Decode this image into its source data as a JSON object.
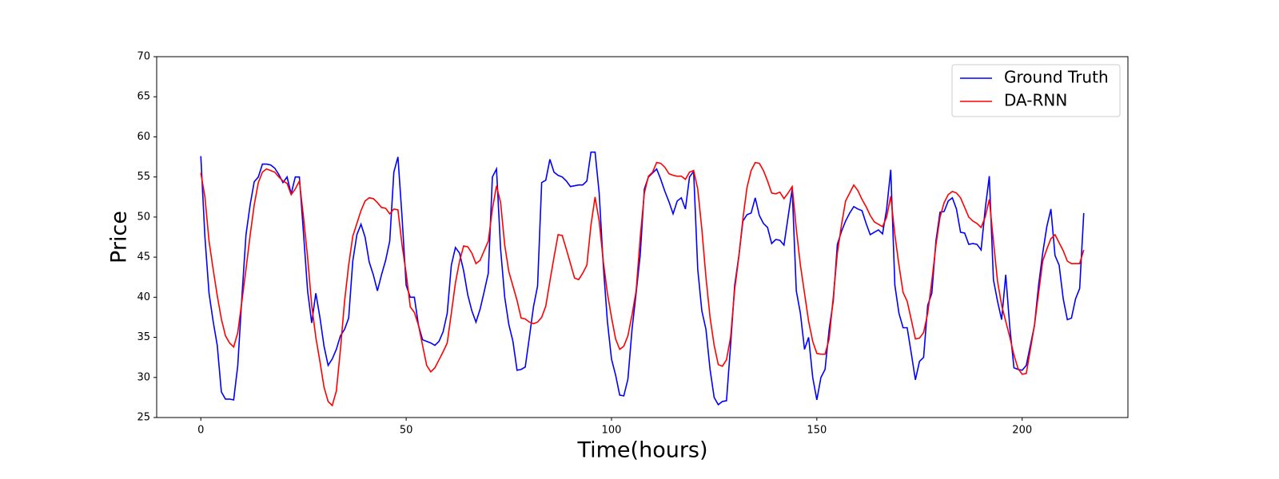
{
  "chart_data": {
    "type": "line",
    "xlabel": "Time(hours)",
    "ylabel": "Price",
    "x": [
      0,
      1,
      2,
      3,
      4,
      5,
      6,
      7,
      8,
      9,
      10,
      11,
      12,
      13,
      14,
      15,
      16,
      17,
      18,
      19,
      20,
      21,
      22,
      23,
      24,
      25,
      26,
      27,
      28,
      29,
      30,
      31,
      32,
      33,
      34,
      35,
      36,
      37,
      38,
      39,
      40,
      41,
      42,
      43,
      44,
      45,
      46,
      47,
      48,
      49,
      50,
      51,
      52,
      53,
      54,
      55,
      56,
      57,
      58,
      59,
      60,
      61,
      62,
      63,
      64,
      65,
      66,
      67,
      68,
      69,
      70,
      71,
      72,
      73,
      74,
      75,
      76,
      77,
      78,
      79,
      80,
      81,
      82,
      83,
      84,
      85,
      86,
      87,
      88,
      89,
      90,
      91,
      92,
      93,
      94,
      95,
      96,
      97,
      98,
      99,
      100,
      101,
      102,
      103,
      104,
      105,
      106,
      107,
      108,
      109,
      110,
      111,
      112,
      113,
      114,
      115,
      116,
      117,
      118,
      119,
      120,
      121,
      122,
      123,
      124,
      125,
      126,
      127,
      128,
      129,
      130,
      131,
      132,
      133,
      134,
      135,
      136,
      137,
      138,
      139,
      140,
      141,
      142,
      143,
      144,
      145,
      146,
      147,
      148,
      149,
      150,
      151,
      152,
      153,
      154,
      155,
      156,
      157,
      158,
      159,
      160,
      161,
      162,
      163,
      164,
      165,
      166,
      167,
      168,
      169,
      170,
      171,
      172,
      173,
      174,
      175,
      176,
      177,
      178,
      179,
      180,
      181,
      182,
      183,
      184,
      185,
      186,
      187,
      188,
      189,
      190,
      191,
      192,
      193,
      194,
      195,
      196,
      197,
      198,
      199,
      200,
      201,
      202,
      203,
      204,
      205,
      206,
      207,
      208,
      209,
      210,
      211,
      212,
      213,
      214,
      215
    ],
    "series": [
      {
        "name": "Ground Truth",
        "color": "#0000ff",
        "values": [
          57.6,
          47.5,
          40.5,
          37,
          34,
          28.2,
          27.3,
          27.3,
          27.2,
          31.5,
          40,
          47.8,
          51.5,
          54.4,
          55,
          56.6,
          56.6,
          56.5,
          56.1,
          55.3,
          54.3,
          55,
          52.9,
          55,
          55,
          48,
          40.8,
          36.8,
          40.5,
          37.5,
          33.9,
          31.5,
          32.3,
          33.5,
          35.2,
          36,
          37.4,
          44.5,
          47.8,
          49.1,
          47.5,
          44.4,
          42.8,
          40.8,
          42.8,
          44.6,
          47,
          55.6,
          57.5,
          50,
          41.5,
          40,
          40,
          36.5,
          34.7,
          34.5,
          34.3,
          34,
          34.5,
          35.7,
          38,
          44,
          46.2,
          45.5,
          43.3,
          40.3,
          38.3,
          36.9,
          38.5,
          40.7,
          43,
          55,
          56,
          46,
          40,
          36.6,
          34.5,
          30.9,
          31,
          31.3,
          35,
          38.8,
          41.4,
          54.3,
          54.6,
          57.2,
          55.6,
          55.2,
          55,
          54.5,
          53.8,
          53.9,
          54,
          54,
          54.5,
          58.1,
          58.1,
          53,
          44,
          37,
          32.3,
          30.3,
          27.8,
          27.7,
          29.8,
          36,
          40.5,
          45.3,
          53.5,
          55,
          55.5,
          56,
          54.7,
          53.2,
          51.9,
          50.4,
          52,
          52.4,
          51,
          55,
          55.7,
          43.5,
          38.3,
          36,
          31,
          27.5,
          26.6,
          27,
          27.1,
          34,
          41.5,
          45.1,
          49.5,
          50.3,
          50.5,
          52.4,
          50.2,
          49.2,
          48.7,
          46.7,
          47.2,
          47.1,
          46.5,
          50,
          53.5,
          40.8,
          38,
          33.5,
          35,
          30,
          27.2,
          30,
          31,
          36,
          39.5,
          46.6,
          48.2,
          49.5,
          50.5,
          51.3,
          51,
          50.8,
          49.2,
          47.8,
          48.1,
          48.4,
          47.9,
          51,
          55.9,
          41.5,
          38,
          36.2,
          36.2,
          33,
          29.7,
          32,
          32.5,
          39,
          40.5,
          47,
          50.6,
          50.7,
          52,
          52.4,
          51,
          48.1,
          48,
          46.6,
          46.7,
          46.6,
          45.9,
          51,
          55.1,
          42.2,
          39.5,
          37.2,
          42.8,
          36.2,
          31.2,
          31,
          30.9,
          31.5,
          34,
          36.5,
          41.5,
          45.5,
          48.8,
          51,
          45.2,
          44,
          39.8,
          37.2,
          37.4,
          39.8,
          41.1,
          50.5
        ]
      },
      {
        "name": "DA-RNN",
        "color": "#ff0000",
        "values": [
          55.5,
          52.5,
          47,
          43.5,
          40.2,
          37.3,
          35.2,
          34.3,
          33.8,
          35.6,
          39.5,
          43.5,
          47.7,
          51.5,
          54.3,
          55.6,
          56,
          55.8,
          55.6,
          55,
          54.5,
          54.2,
          52.8,
          53.5,
          54.5,
          50,
          45,
          39,
          35,
          32,
          28.8,
          27,
          26.5,
          28.3,
          33.5,
          39.5,
          44,
          47.6,
          49.2,
          50.8,
          52,
          52.4,
          52.3,
          51.8,
          51.2,
          51.1,
          50.4,
          51,
          50.9,
          46.5,
          43,
          38.8,
          38.1,
          36.5,
          34,
          31.5,
          30.7,
          31.2,
          32.2,
          33.2,
          34.3,
          38,
          41.8,
          44.5,
          46.4,
          46.3,
          45.5,
          44.2,
          44.6,
          45.8,
          47,
          51,
          53.9,
          51.8,
          46.5,
          43.2,
          41.4,
          39.6,
          37.4,
          37.3,
          36.9,
          36.7,
          36.9,
          37.5,
          38.9,
          42,
          45,
          47.8,
          47.7,
          46,
          44.2,
          42.4,
          42.2,
          43,
          44,
          49,
          52.5,
          49.5,
          44.5,
          40.5,
          37.5,
          34.8,
          33.5,
          33.9,
          35.2,
          37.8,
          40.8,
          47.5,
          53,
          55.1,
          55.6,
          56.8,
          56.7,
          56.2,
          55.4,
          55.2,
          55.1,
          55.1,
          54.7,
          55.6,
          55.8,
          53.5,
          48.5,
          42.5,
          37.5,
          34,
          31.6,
          31.4,
          32.2,
          35,
          41,
          45,
          49.8,
          53.7,
          55.8,
          56.8,
          56.7,
          55.8,
          54.5,
          53,
          52.9,
          53.1,
          52.3,
          53,
          53.8,
          48.5,
          44,
          40.5,
          37,
          34.5,
          33,
          32.9,
          32.9,
          34.8,
          40,
          45.5,
          49,
          52,
          53,
          54,
          53.3,
          52.2,
          51.3,
          50.2,
          49.4,
          49.1,
          48.8,
          50,
          52.6,
          47.8,
          44,
          40.6,
          39.5,
          37.2,
          34.8,
          34.9,
          35.6,
          38,
          42,
          46.5,
          50,
          51.8,
          52.8,
          53.2,
          53,
          52.4,
          51.2,
          50,
          49.5,
          49.2,
          48.7,
          50,
          52.2,
          47,
          42,
          39,
          37,
          35,
          32.8,
          31.1,
          30.4,
          30.5,
          33.5,
          36.5,
          40.5,
          44.5,
          46,
          47.3,
          47.8,
          46.8,
          45.8,
          44.5,
          44.2,
          44.2,
          44.2,
          45.9
        ]
      }
    ],
    "xlim": [
      -10.75,
      225.75
    ],
    "xticks": [
      0,
      50,
      100,
      150,
      200
    ],
    "ylim": [
      25,
      70
    ],
    "yticks": [
      25,
      30,
      35,
      40,
      45,
      50,
      55,
      60,
      65,
      70
    ],
    "legend": "upper right"
  }
}
